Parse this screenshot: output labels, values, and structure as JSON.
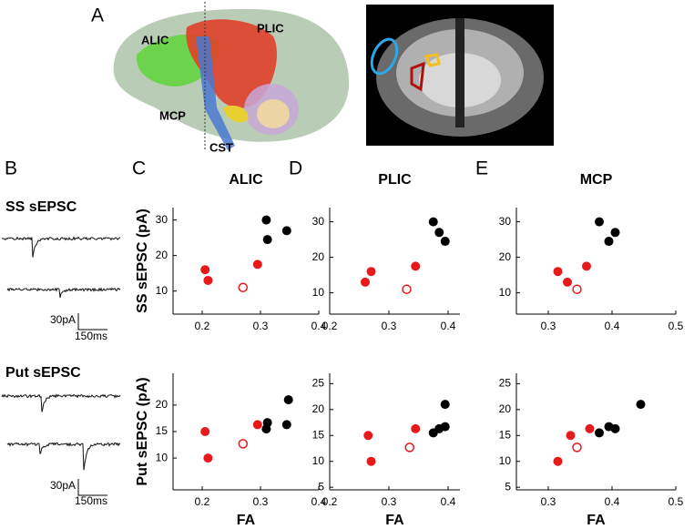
{
  "figure": {
    "panel_a": {
      "label": "A",
      "tracts": [
        "ALIC",
        "PLIC",
        "MCP",
        "CST"
      ]
    },
    "panel_b": {
      "label": "B",
      "traces": [
        {
          "title": "SS sEPSC",
          "scale_y": "30pA",
          "scale_x": "150ms"
        },
        {
          "title": "Put sEPSC",
          "scale_y": "30pA",
          "scale_x": "150ms"
        }
      ]
    }
  },
  "chart_data": [
    {
      "type": "scatter",
      "panel": "C",
      "title": "ALIC",
      "y_label": "SS sEPSC (pA)",
      "xlim": [
        0.15,
        0.4
      ],
      "ylim": [
        3.5,
        33.5
      ],
      "xticks": [
        0.2,
        0.3,
        0.4
      ],
      "yticks": [
        10,
        20,
        30
      ],
      "series": [
        {
          "color": "#e8191b",
          "marker": "filled",
          "x": [
            0.205,
            0.21,
            0.295
          ],
          "values": [
            16,
            13,
            17.5
          ]
        },
        {
          "color": "#e8191b",
          "marker": "open",
          "x": [
            0.27
          ],
          "values": [
            11
          ]
        },
        {
          "color": "#000000",
          "marker": "filled",
          "x": [
            0.31,
            0.312,
            0.345
          ],
          "values": [
            30,
            24.5,
            27
          ]
        }
      ]
    },
    {
      "type": "scatter",
      "panel": "D",
      "title": "PLIC",
      "xlim": [
        0.2,
        0.42
      ],
      "ylim": [
        4,
        34
      ],
      "xticks": [
        0.2,
        0.3,
        0.4
      ],
      "yticks": [
        10,
        20,
        30
      ],
      "series": [
        {
          "color": "#e8191b",
          "marker": "filled",
          "x": [
            0.26,
            0.27,
            0.345
          ],
          "values": [
            13,
            16,
            17.5
          ]
        },
        {
          "color": "#e8191b",
          "marker": "open",
          "x": [
            0.33
          ],
          "values": [
            11
          ]
        },
        {
          "color": "#000000",
          "marker": "filled",
          "x": [
            0.375,
            0.385,
            0.395
          ],
          "values": [
            30,
            27,
            24.5
          ]
        }
      ]
    },
    {
      "type": "scatter",
      "panel": "E",
      "title": "MCP",
      "xlim": [
        0.25,
        0.5
      ],
      "ylim": [
        4,
        34
      ],
      "xticks": [
        0.3,
        0.4,
        0.5
      ],
      "yticks": [
        10,
        20,
        30
      ],
      "series": [
        {
          "color": "#e8191b",
          "marker": "filled",
          "x": [
            0.315,
            0.33,
            0.36
          ],
          "values": [
            16,
            13,
            17.5
          ]
        },
        {
          "color": "#e8191b",
          "marker": "open",
          "x": [
            0.345
          ],
          "values": [
            11
          ]
        },
        {
          "color": "#000000",
          "marker": "filled",
          "x": [
            0.38,
            0.395,
            0.405
          ],
          "values": [
            30,
            24.5,
            27
          ]
        }
      ]
    },
    {
      "type": "scatter",
      "y_label": "Put sEPSC (pA)",
      "x_label": "FA",
      "xlim": [
        0.15,
        0.4
      ],
      "ylim": [
        4,
        26
      ],
      "xticks": [
        0.2,
        0.3,
        0.4
      ],
      "yticks": [
        10,
        15,
        20
      ],
      "series": [
        {
          "color": "#e8191b",
          "marker": "filled",
          "x": [
            0.205,
            0.21,
            0.295
          ],
          "values": [
            15,
            10,
            16.3
          ]
        },
        {
          "color": "#e8191b",
          "marker": "open",
          "x": [
            0.27
          ],
          "values": [
            12.7
          ]
        },
        {
          "color": "#000000",
          "marker": "filled",
          "x": [
            0.31,
            0.312,
            0.345,
            0.348
          ],
          "values": [
            15.5,
            16.7,
            16.3,
            21
          ]
        }
      ]
    },
    {
      "type": "scatter",
      "x_label": "FA",
      "xlim": [
        0.2,
        0.42
      ],
      "ylim": [
        4.5,
        27
      ],
      "xticks": [
        0.2,
        0.3,
        0.4
      ],
      "yticks": [
        5,
        10,
        15,
        20,
        25
      ],
      "series": [
        {
          "color": "#e8191b",
          "marker": "filled",
          "x": [
            0.265,
            0.27,
            0.345
          ],
          "values": [
            15,
            10,
            16.3
          ]
        },
        {
          "color": "#e8191b",
          "marker": "open",
          "x": [
            0.335
          ],
          "values": [
            12.7
          ]
        },
        {
          "color": "#000000",
          "marker": "filled",
          "x": [
            0.375,
            0.385,
            0.395,
            0.395
          ],
          "values": [
            15.5,
            16.3,
            16.7,
            21
          ]
        }
      ]
    },
    {
      "type": "scatter",
      "x_label": "FA",
      "xlim": [
        0.25,
        0.5
      ],
      "ylim": [
        4.5,
        27
      ],
      "xticks": [
        0.3,
        0.4,
        0.5
      ],
      "yticks": [
        5,
        10,
        15,
        20,
        25
      ],
      "series": [
        {
          "color": "#e8191b",
          "marker": "filled",
          "x": [
            0.315,
            0.335,
            0.365
          ],
          "values": [
            10,
            15,
            16.3
          ]
        },
        {
          "color": "#e8191b",
          "marker": "open",
          "x": [
            0.345
          ],
          "values": [
            12.7
          ]
        },
        {
          "color": "#000000",
          "marker": "filled",
          "x": [
            0.38,
            0.395,
            0.405,
            0.445
          ],
          "values": [
            15.5,
            16.7,
            16.3,
            21
          ]
        }
      ]
    }
  ]
}
